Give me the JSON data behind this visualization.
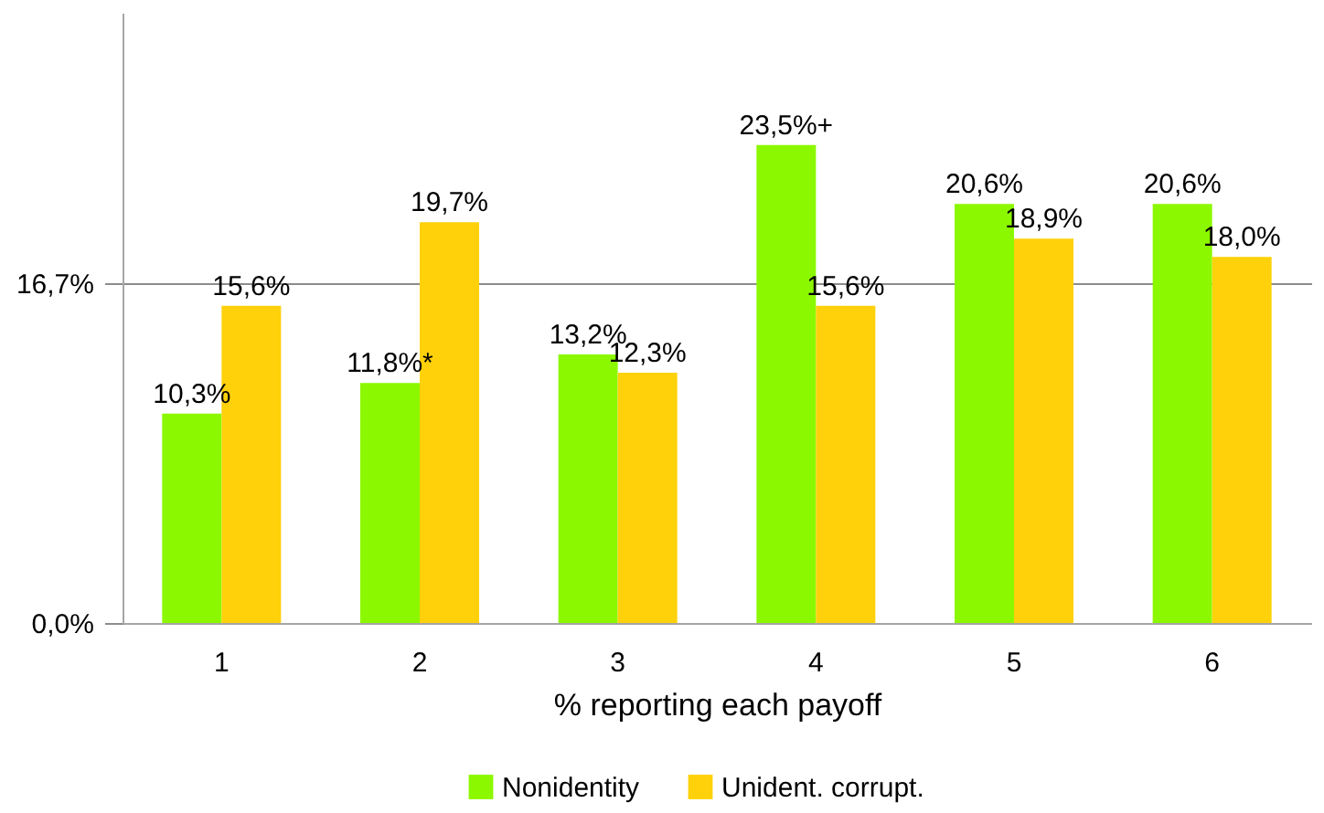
{
  "chart_data": {
    "type": "bar",
    "xlabel": "% reporting each payoff",
    "categories": [
      "1",
      "2",
      "3",
      "4",
      "5",
      "6"
    ],
    "series": [
      {
        "name": "Nonidentity",
        "color": "#8cf800",
        "values": [
          10.3,
          11.8,
          13.2,
          23.5,
          20.6,
          20.6
        ],
        "value_labels": [
          "10,3%",
          "11,8%*",
          "13,2%",
          "23,5%+",
          "20,6%",
          "20,6%"
        ]
      },
      {
        "name": "Unident. corrupt.",
        "color": "#fed10a",
        "values": [
          15.6,
          19.7,
          12.3,
          15.6,
          18.9,
          18.0
        ],
        "value_labels": [
          "15,6%",
          "19,7%",
          "12,3%",
          "15,6%",
          "18,9%",
          "18,0%"
        ]
      }
    ],
    "ylim": [
      0,
      30
    ],
    "yticks": [
      {
        "value": 0,
        "label": "0,0%"
      },
      {
        "value": 16.7,
        "label": "16,7%"
      }
    ],
    "grid": "y",
    "legend": "bottom"
  }
}
